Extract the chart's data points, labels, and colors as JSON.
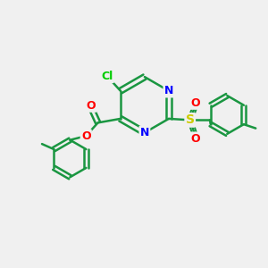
{
  "background_color": "#f0f0f0",
  "title": "",
  "atoms": {
    "colors": {
      "C": "#1a9641",
      "N": "#0000ff",
      "O": "#ff0000",
      "S": "#cccc00",
      "Cl": "#00cc00",
      "H": "#000000"
    }
  },
  "bond_color": "#1a9641",
  "line_width": 1.8,
  "figsize": [
    3.0,
    3.0
  ],
  "dpi": 100
}
